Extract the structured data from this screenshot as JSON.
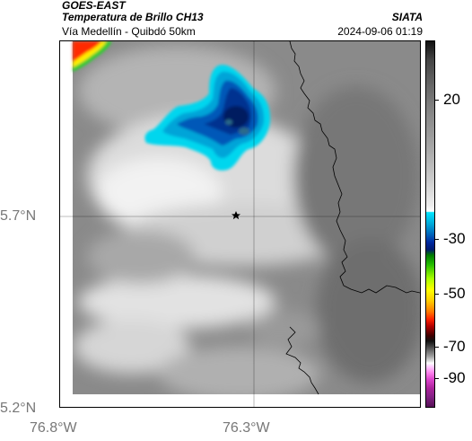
{
  "header": {
    "satellite": "GOES-EAST",
    "product": "Temperatura de Brillo CH13",
    "location": "Vía Medellín - Quibdó 50km",
    "organization": "SIATA",
    "timestamp": "2024-09-06 01:19"
  },
  "map": {
    "lat_labels": [
      "5.7°N",
      "5.2°N"
    ],
    "lon_labels": [
      "76.8°W",
      "76.3°W"
    ],
    "marker": "star-marker",
    "colors": {
      "cloud_cyan": "#00d8f0",
      "cloud_blue": "#0050b0",
      "cloud_dark": "#001a60",
      "hot_red": "#ff2a00",
      "hot_yellow": "#ffee00",
      "hot_green": "#33cc33"
    }
  },
  "colorbar": {
    "labels": [
      "20",
      "-30",
      "-50",
      "-70",
      "-90"
    ]
  }
}
